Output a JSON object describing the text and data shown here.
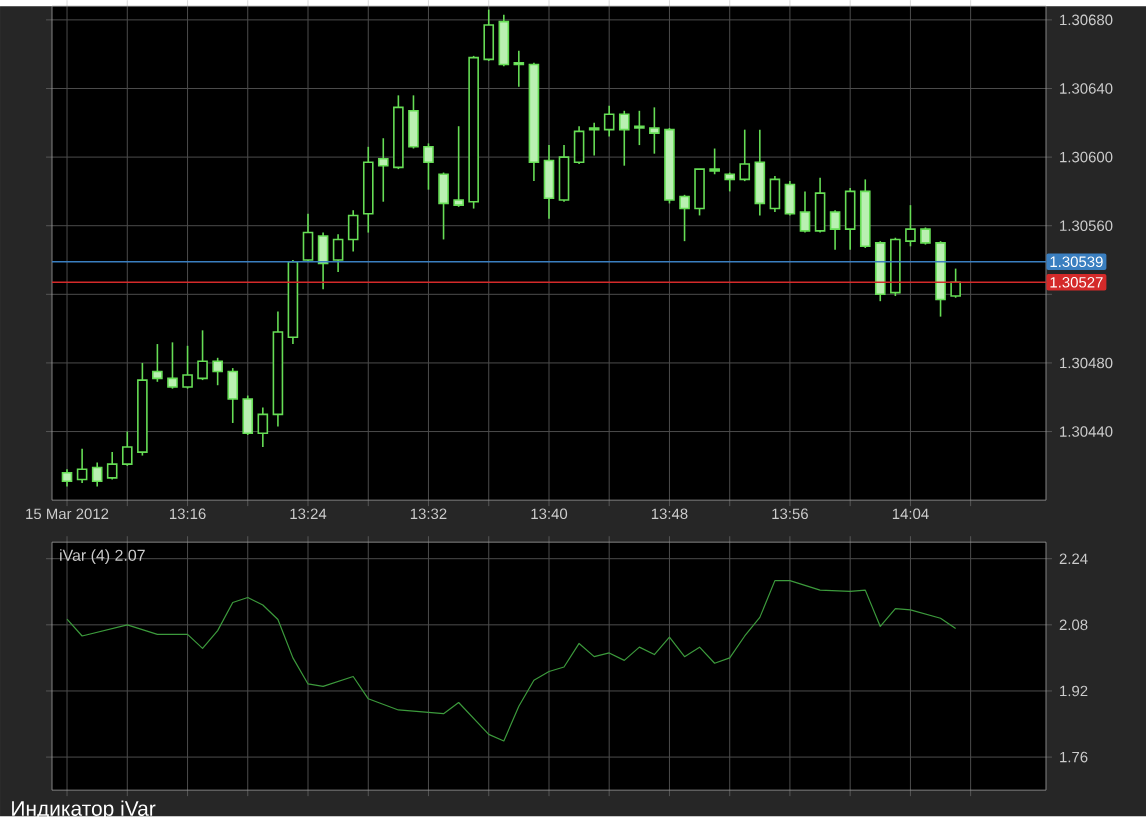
{
  "chart_data": [
    {
      "type": "candlestick",
      "color": "#66dd55",
      "grid": true,
      "x": [
        13.1333,
        13.15,
        13.1667,
        13.1833,
        13.2,
        13.2167,
        13.2333,
        13.25,
        13.2667,
        13.2833,
        13.3,
        13.3167,
        13.3333,
        13.35,
        13.3667,
        13.3833,
        13.4,
        13.4167,
        13.4333,
        13.45,
        13.4667,
        13.4833,
        13.5,
        13.5167,
        13.5333,
        13.55,
        13.5667,
        13.5833,
        13.6,
        13.6167,
        13.6333,
        13.65,
        13.6667,
        13.6833,
        13.7,
        13.7167,
        13.7333,
        13.75,
        13.7667,
        13.7833,
        13.8,
        13.8167,
        13.8333,
        13.85,
        13.8667,
        13.8833,
        13.9,
        13.9167,
        13.9333,
        13.95,
        13.9667,
        13.9833,
        14,
        14.0167,
        14.0333,
        14.05,
        14.0667,
        14.0833,
        14.1,
        14.1167
      ],
      "ohlc": [
        [
          1.30416,
          1.30418,
          1.30408,
          1.30411
        ],
        [
          1.30412,
          1.3043,
          1.3041,
          1.30418
        ],
        [
          1.30419,
          1.30422,
          1.30408,
          1.30411
        ],
        [
          1.30413,
          1.30428,
          1.30412,
          1.30421
        ],
        [
          1.30421,
          1.3044,
          1.3042,
          1.30431
        ],
        [
          1.30428,
          1.3048,
          1.30426,
          1.3047
        ],
        [
          1.30475,
          1.30491,
          1.30469,
          1.30471
        ],
        [
          1.30471,
          1.30492,
          1.30465,
          1.30466
        ],
        [
          1.30466,
          1.3049,
          1.30465,
          1.30473
        ],
        [
          1.30471,
          1.30499,
          1.3047,
          1.30481
        ],
        [
          1.30481,
          1.30483,
          1.30467,
          1.30475
        ],
        [
          1.30475,
          1.30477,
          1.30445,
          1.30459
        ],
        [
          1.30459,
          1.30461,
          1.30438,
          1.30439
        ],
        [
          1.30439,
          1.30454,
          1.30431,
          1.3045
        ],
        [
          1.3045,
          1.3051,
          1.30443,
          1.30498
        ],
        [
          1.30495,
          1.3054,
          1.30491,
          1.30539
        ],
        [
          1.3054,
          1.30567,
          1.30539,
          1.30556
        ],
        [
          1.30554,
          1.30556,
          1.30523,
          1.30538
        ],
        [
          1.3054,
          1.30555,
          1.30533,
          1.30552
        ],
        [
          1.30552,
          1.30569,
          1.30545,
          1.30566
        ],
        [
          1.30567,
          1.30606,
          1.30556,
          1.30597
        ],
        [
          1.30599,
          1.30611,
          1.30574,
          1.30595
        ],
        [
          1.30594,
          1.30636,
          1.30593,
          1.30629
        ],
        [
          1.30627,
          1.30636,
          1.30605,
          1.30606
        ],
        [
          1.30606,
          1.30608,
          1.30581,
          1.30597
        ],
        [
          1.3059,
          1.30591,
          1.30552,
          1.30573
        ],
        [
          1.30575,
          1.30618,
          1.30571,
          1.30572
        ],
        [
          1.30574,
          1.30659,
          1.3057,
          1.30658
        ],
        [
          1.30657,
          1.30686,
          1.30656,
          1.30677
        ],
        [
          1.30679,
          1.30683,
          1.30653,
          1.30654
        ],
        [
          1.30655,
          1.30662,
          1.30641,
          1.30654
        ],
        [
          1.30654,
          1.30655,
          1.30586,
          1.30597
        ],
        [
          1.30598,
          1.30607,
          1.30564,
          1.30576
        ],
        [
          1.30575,
          1.30607,
          1.30574,
          1.306
        ],
        [
          1.30597,
          1.30618,
          1.30596,
          1.30615
        ],
        [
          1.30617,
          1.3062,
          1.30601,
          1.30616
        ],
        [
          1.30616,
          1.3063,
          1.30612,
          1.30625
        ],
        [
          1.30625,
          1.30627,
          1.30595,
          1.30616
        ],
        [
          1.30618,
          1.30627,
          1.30607,
          1.30617
        ],
        [
          1.30617,
          1.30629,
          1.30602,
          1.30614
        ],
        [
          1.30616,
          1.30617,
          1.30573,
          1.30575
        ],
        [
          1.30577,
          1.30578,
          1.30551,
          1.3057
        ],
        [
          1.3057,
          1.30593,
          1.30566,
          1.30593
        ],
        [
          1.30593,
          1.30605,
          1.3059,
          1.30592
        ],
        [
          1.3059,
          1.30591,
          1.3058,
          1.30587
        ],
        [
          1.30587,
          1.30616,
          1.30586,
          1.30596
        ],
        [
          1.30597,
          1.30616,
          1.30566,
          1.30573
        ],
        [
          1.3057,
          1.30589,
          1.30568,
          1.30587
        ],
        [
          1.30584,
          1.30586,
          1.30566,
          1.30567
        ],
        [
          1.30568,
          1.3058,
          1.30556,
          1.30557
        ],
        [
          1.30557,
          1.30588,
          1.30556,
          1.30579
        ],
        [
          1.30568,
          1.30569,
          1.30546,
          1.30558
        ],
        [
          1.30558,
          1.30582,
          1.30546,
          1.3058
        ],
        [
          1.3058,
          1.30587,
          1.30547,
          1.30548
        ],
        [
          1.3055,
          1.30551,
          1.30516,
          1.3052
        ],
        [
          1.30521,
          1.30553,
          1.30519,
          1.30552
        ],
        [
          1.30551,
          1.30572,
          1.30548,
          1.30558
        ],
        [
          1.30558,
          1.30559,
          1.30549,
          1.3055
        ],
        [
          1.3055,
          1.30551,
          1.30507,
          1.30517
        ],
        [
          1.30519,
          1.30535,
          1.30518,
          1.30527
        ]
      ],
      "xlim": [
        13.1167,
        14.2167
      ],
      "xticks": [
        {
          "value": 13.1333,
          "label": "15 Mar 2012"
        },
        {
          "value": 13.2,
          "label": null
        },
        {
          "value": 13.2667,
          "label": "13:16"
        },
        {
          "value": 13.3333,
          "label": null
        },
        {
          "value": 13.4,
          "label": "13:24"
        },
        {
          "value": 13.4667,
          "label": null
        },
        {
          "value": 13.5333,
          "label": "13:32"
        },
        {
          "value": 13.6,
          "label": null
        },
        {
          "value": 13.6667,
          "label": "13:40"
        },
        {
          "value": 13.7333,
          "label": null
        },
        {
          "value": 13.8,
          "label": "13:48"
        },
        {
          "value": 13.8667,
          "label": null
        },
        {
          "value": 13.9333,
          "label": "13:56"
        },
        {
          "value": 14,
          "label": null
        },
        {
          "value": 14.0667,
          "label": "14:04"
        },
        {
          "value": 14.1333,
          "label": null
        }
      ],
      "ylim": [
        1.304,
        1.30688
      ],
      "yticks": [
        {
          "value": 1.3044,
          "label": "1.30440"
        },
        {
          "value": 1.3048,
          "label": "1.30480"
        },
        {
          "value": 1.3052,
          "label": null
        },
        {
          "value": 1.3056,
          "label": "1.30560"
        },
        {
          "value": 1.306,
          "label": "1.30600"
        },
        {
          "value": 1.3064,
          "label": "1.30640"
        },
        {
          "value": 1.3068,
          "label": "1.30680"
        }
      ],
      "ref_lines": [
        {
          "axis": "y",
          "value": 1.30539,
          "label": "1.30539",
          "color": "#3a7fc0"
        },
        {
          "axis": "y",
          "value": 1.30527,
          "label": "1.30527",
          "color": "#d42a2a"
        }
      ]
    },
    {
      "type": "line",
      "title": "iVar (4) 2.07",
      "color": "#3c9a3c",
      "marker": "none",
      "grid": true,
      "tick_labels": "y",
      "x": [
        13.1333,
        13.15,
        13.2,
        13.2333,
        13.2667,
        13.2833,
        13.3,
        13.3167,
        13.3333,
        13.35,
        13.3667,
        13.3833,
        13.4,
        13.4167,
        13.45,
        13.4667,
        13.5,
        13.55,
        13.5667,
        13.6,
        13.6167,
        13.6333,
        13.65,
        13.6667,
        13.6833,
        13.7,
        13.7167,
        13.7333,
        13.75,
        13.7667,
        13.7833,
        13.8,
        13.8167,
        13.8333,
        13.85,
        13.8667,
        13.8833,
        13.9,
        13.9167,
        13.9333,
        13.9667,
        14,
        14.0167,
        14.0333,
        14.05,
        14.0667,
        14.1,
        14.1167
      ],
      "values": [
        2.094,
        2.053,
        2.08,
        2.057,
        2.057,
        2.023,
        2.066,
        2.134,
        2.146,
        2.128,
        2.093,
        2.0,
        1.937,
        1.931,
        1.955,
        1.901,
        1.874,
        1.865,
        1.892,
        1.815,
        1.799,
        1.883,
        1.946,
        1.967,
        1.978,
        2.035,
        2.003,
        2.012,
        1.994,
        2.026,
        2.008,
        2.05,
        2.003,
        2.026,
        1.987,
        2.0,
        2.053,
        2.098,
        2.187,
        2.187,
        2.164,
        2.161,
        2.164,
        2.076,
        2.119,
        2.116,
        2.096,
        2.071
      ],
      "xlim": [
        13.1167,
        14.2167
      ],
      "xticks": [
        {
          "value": 13.1333,
          "label": null
        },
        {
          "value": 13.2,
          "label": null
        },
        {
          "value": 13.2667,
          "label": null
        },
        {
          "value": 13.3333,
          "label": null
        },
        {
          "value": 13.4,
          "label": null
        },
        {
          "value": 13.4667,
          "label": null
        },
        {
          "value": 13.5333,
          "label": null
        },
        {
          "value": 13.6,
          "label": null
        },
        {
          "value": 13.6667,
          "label": null
        },
        {
          "value": 13.7333,
          "label": null
        },
        {
          "value": 13.8,
          "label": null
        },
        {
          "value": 13.8667,
          "label": null
        },
        {
          "value": 13.9333,
          "label": null
        },
        {
          "value": 14,
          "label": null
        },
        {
          "value": 14.0667,
          "label": null
        },
        {
          "value": 14.1333,
          "label": null
        }
      ],
      "ylim": [
        1.68,
        2.28
      ],
      "yticks": [
        1.76,
        1.92,
        2.08,
        2.24
      ],
      "annotations": [
        "Индикатор iVar"
      ]
    }
  ]
}
